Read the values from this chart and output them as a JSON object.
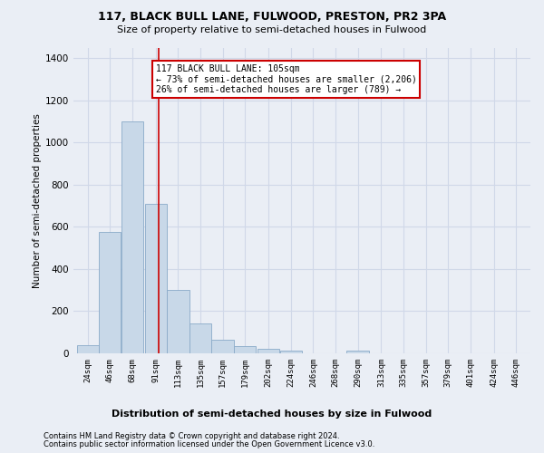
{
  "title1": "117, BLACK BULL LANE, FULWOOD, PRESTON, PR2 3PA",
  "title2": "Size of property relative to semi-detached houses in Fulwood",
  "xlabel": "Distribution of semi-detached houses by size in Fulwood",
  "ylabel": "Number of semi-detached properties",
  "footer1": "Contains HM Land Registry data © Crown copyright and database right 2024.",
  "footer2": "Contains public sector information licensed under the Open Government Licence v3.0.",
  "annotation_title": "117 BLACK BULL LANE: 105sqm",
  "annotation_line1": "← 73% of semi-detached houses are smaller (2,206)",
  "annotation_line2": "26% of semi-detached houses are larger (789) →",
  "property_size": 105,
  "bin_starts": [
    24,
    46,
    68,
    91,
    113,
    135,
    157,
    179,
    202,
    224,
    246,
    268,
    290,
    313,
    335,
    357,
    379,
    401,
    424,
    446
  ],
  "bin_width": 22,
  "bar_heights": [
    38,
    575,
    1100,
    710,
    300,
    140,
    65,
    35,
    20,
    13,
    0,
    0,
    12,
    0,
    0,
    0,
    0,
    0,
    0,
    0
  ],
  "bar_color": "#c8d8e8",
  "bar_edge_color": "#8aaac8",
  "grid_color": "#d0d8e8",
  "bg_color": "#eaeef5",
  "vline_color": "#cc0000",
  "vline_x": 105,
  "ylim": [
    0,
    1450
  ],
  "yticks": [
    0,
    200,
    400,
    600,
    800,
    1000,
    1200,
    1400
  ],
  "annotation_box_color": "#cc0000",
  "annotation_text_color": "#000000",
  "annotation_bg": "#ffffff",
  "title1_fontsize": 9,
  "title2_fontsize": 8,
  "ylabel_fontsize": 7.5,
  "xtick_fontsize": 6.5,
  "ytick_fontsize": 7.5,
  "xlabel_fontsize": 8,
  "footer_fontsize": 6,
  "annot_fontsize": 7
}
